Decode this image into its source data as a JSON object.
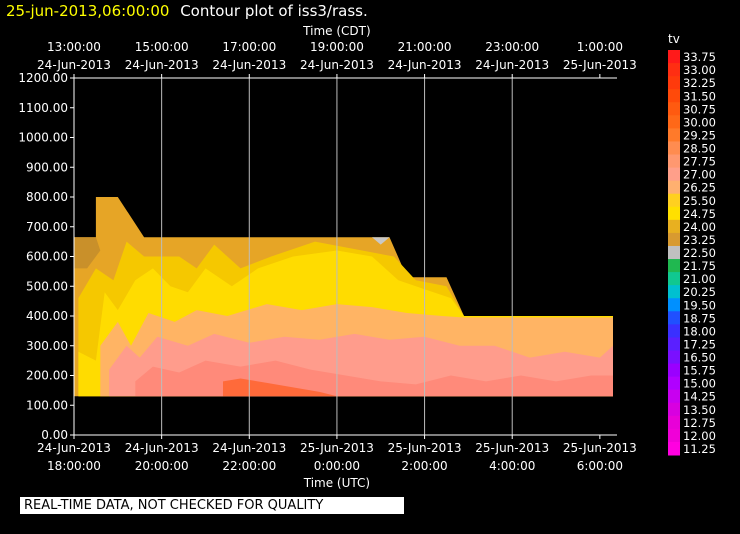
{
  "header": {
    "date_label": "25-jun-2013,06:00:00",
    "title": "Contour plot of iss3/rass."
  },
  "notice": "REAL-TIME DATA, NOT CHECKED FOR QUALITY",
  "chart_data": {
    "type": "heatmap",
    "title": "Contour plot of iss3/rass.",
    "top_axis_label": "Time (CDT)",
    "bottom_axis_label": "Time (UTC)",
    "top_ticks": [
      {
        "time": "13:00:00",
        "date": "24-Jun-2013"
      },
      {
        "time": "15:00:00",
        "date": "24-Jun-2013"
      },
      {
        "time": "17:00:00",
        "date": "24-Jun-2013"
      },
      {
        "time": "19:00:00",
        "date": "24-Jun-2013"
      },
      {
        "time": "21:00:00",
        "date": "24-Jun-2013"
      },
      {
        "time": "23:00:00",
        "date": "24-Jun-2013"
      },
      {
        "time": "1:00:00",
        "date": "25-Jun-2013"
      }
    ],
    "bottom_ticks": [
      {
        "date": "24-Jun-2013",
        "time": "18:00:00"
      },
      {
        "date": "24-Jun-2013",
        "time": "20:00:00"
      },
      {
        "date": "24-Jun-2013",
        "time": "22:00:00"
      },
      {
        "date": "25-Jun-2013",
        "time": "0:00:00"
      },
      {
        "date": "25-Jun-2013",
        "time": "2:00:00"
      },
      {
        "date": "25-Jun-2013",
        "time": "4:00:00"
      },
      {
        "date": "25-Jun-2013",
        "time": "6:00:00"
      }
    ],
    "x_range_hours_utc": [
      18,
      30.3
    ],
    "grid_hours_utc": [
      20,
      22,
      24,
      26,
      28
    ],
    "y_ticks": [
      "0.00",
      "100.00",
      "200.00",
      "300.00",
      "400.00",
      "500.00",
      "600.00",
      "700.00",
      "800.00",
      "900.00",
      "1000.00",
      "1100.00",
      "1200.00"
    ],
    "ylim": [
      0,
      1200
    ],
    "colorbar": {
      "title": "tv",
      "levels": [
        "33.75",
        "33.00",
        "32.25",
        "31.50",
        "30.75",
        "30.00",
        "29.25",
        "28.50",
        "27.75",
        "27.00",
        "26.25",
        "25.50",
        "24.75",
        "24.00",
        "23.25",
        "22.50",
        "21.75",
        "21.00",
        "20.25",
        "19.50",
        "18.75",
        "18.00",
        "17.25",
        "16.50",
        "15.75",
        "15.00",
        "14.25",
        "13.50",
        "12.75",
        "12.00",
        "11.25"
      ],
      "colors": [
        "#ff1a1a",
        "#ff2e12",
        "#ff3a0c",
        "#ff4a0a",
        "#ff5a10",
        "#ff6818",
        "#ff7a2a",
        "#ff8c50",
        "#ff9870",
        "#ff9f8a",
        "#ffb070",
        "#ffd020",
        "#ffe000",
        "#e8b020",
        "#d89a30",
        "#c0c0c0",
        "#20b850",
        "#10c890",
        "#00c0d0",
        "#0090ff",
        "#2050ff",
        "#3a30ff",
        "#5a20ff",
        "#7a10ff",
        "#9a00ff",
        "#b000ff",
        "#c800f0",
        "#d800e0",
        "#e800d8",
        "#f000d8",
        "#ff00e0"
      ]
    },
    "regions": [
      {
        "name": "tv 24.00-24.75",
        "color": "#e6a526",
        "poly": [
          [
            18,
            130
          ],
          [
            18,
            665
          ],
          [
            18.5,
            665
          ],
          [
            18.5,
            800
          ],
          [
            19,
            800
          ],
          [
            19.6,
            665
          ],
          [
            25.2,
            665
          ],
          [
            25.6,
            530
          ],
          [
            26.5,
            530
          ],
          [
            26.9,
            400
          ],
          [
            30.3,
            400
          ],
          [
            30.3,
            130
          ]
        ]
      },
      {
        "name": "tv 23.25-24.00",
        "color": "#c9902a",
        "poly": [
          [
            18,
            560
          ],
          [
            18,
            665
          ],
          [
            18.5,
            665
          ],
          [
            18.6,
            620
          ],
          [
            18.3,
            560
          ]
        ]
      },
      {
        "name": "tv 22.50-23.25",
        "color": "#c8c8c8",
        "poly": [
          [
            24.8,
            665
          ],
          [
            25.2,
            665
          ],
          [
            25.0,
            640
          ]
        ]
      },
      {
        "name": "tv 24.75-25.50",
        "color": "#f5c800",
        "poly": [
          [
            18.1,
            130
          ],
          [
            18.1,
            460
          ],
          [
            18.5,
            560
          ],
          [
            18.9,
            520
          ],
          [
            19.2,
            650
          ],
          [
            19.6,
            600
          ],
          [
            20.4,
            600
          ],
          [
            20.8,
            560
          ],
          [
            21.2,
            640
          ],
          [
            21.8,
            560
          ],
          [
            22.5,
            600
          ],
          [
            23.5,
            650
          ],
          [
            25.3,
            600
          ],
          [
            25.8,
            520
          ],
          [
            26.5,
            500
          ],
          [
            26.9,
            400
          ],
          [
            30.3,
            400
          ],
          [
            30.3,
            130
          ]
        ]
      },
      {
        "name": "tv 25.50-26.25",
        "color": "#ffdc00",
        "poly": [
          [
            18.1,
            130
          ],
          [
            18.1,
            280
          ],
          [
            18.5,
            250
          ],
          [
            18.7,
            480
          ],
          [
            19.0,
            420
          ],
          [
            19.4,
            520
          ],
          [
            19.8,
            560
          ],
          [
            20.2,
            500
          ],
          [
            20.6,
            480
          ],
          [
            21.0,
            560
          ],
          [
            21.6,
            500
          ],
          [
            22.2,
            560
          ],
          [
            23.0,
            600
          ],
          [
            24.0,
            620
          ],
          [
            24.8,
            600
          ],
          [
            25.4,
            520
          ],
          [
            26.0,
            490
          ],
          [
            26.6,
            460
          ],
          [
            26.9,
            400
          ],
          [
            30.3,
            400
          ],
          [
            30.3,
            130
          ]
        ]
      },
      {
        "name": "tv 26.25-27.00",
        "color": "#ffb464",
        "poly": [
          [
            18.6,
            130
          ],
          [
            18.6,
            300
          ],
          [
            19.0,
            380
          ],
          [
            19.3,
            300
          ],
          [
            19.7,
            410
          ],
          [
            20.3,
            380
          ],
          [
            20.8,
            420
          ],
          [
            21.5,
            400
          ],
          [
            22.4,
            440
          ],
          [
            23.2,
            420
          ],
          [
            24.0,
            440
          ],
          [
            24.8,
            430
          ],
          [
            25.6,
            410
          ],
          [
            26.4,
            400
          ],
          [
            26.9,
            395
          ],
          [
            30.3,
            395
          ],
          [
            30.3,
            130
          ]
        ]
      },
      {
        "name": "tv 27.00-27.75",
        "color": "#ff9c8c",
        "poly": [
          [
            18.8,
            130
          ],
          [
            18.8,
            220
          ],
          [
            19.2,
            300
          ],
          [
            19.5,
            260
          ],
          [
            19.9,
            330
          ],
          [
            20.6,
            300
          ],
          [
            21.2,
            340
          ],
          [
            22.0,
            310
          ],
          [
            22.8,
            330
          ],
          [
            23.6,
            320
          ],
          [
            24.4,
            340
          ],
          [
            25.2,
            320
          ],
          [
            26.0,
            330
          ],
          [
            26.8,
            300
          ],
          [
            27.6,
            300
          ],
          [
            28.4,
            260
          ],
          [
            29.2,
            280
          ],
          [
            30.0,
            260
          ],
          [
            30.3,
            300
          ],
          [
            30.3,
            130
          ]
        ]
      },
      {
        "name": "tv 27.75-28.50",
        "color": "#ff8a7a",
        "poly": [
          [
            19.4,
            130
          ],
          [
            19.4,
            180
          ],
          [
            19.8,
            230
          ],
          [
            20.4,
            210
          ],
          [
            21.0,
            250
          ],
          [
            21.8,
            230
          ],
          [
            22.6,
            250
          ],
          [
            23.4,
            220
          ],
          [
            24.2,
            200
          ],
          [
            25.0,
            180
          ],
          [
            25.8,
            170
          ],
          [
            26.6,
            200
          ],
          [
            27.4,
            180
          ],
          [
            28.2,
            200
          ],
          [
            29.0,
            180
          ],
          [
            29.8,
            200
          ],
          [
            30.3,
            200
          ],
          [
            30.3,
            130
          ]
        ]
      },
      {
        "name": "tv 28.50-29.25",
        "color": "#ff6a3a",
        "poly": [
          [
            21.4,
            130
          ],
          [
            21.4,
            180
          ],
          [
            21.8,
            190
          ],
          [
            22.4,
            175
          ],
          [
            23.0,
            160
          ],
          [
            23.6,
            145
          ],
          [
            24.0,
            130
          ]
        ]
      }
    ]
  }
}
